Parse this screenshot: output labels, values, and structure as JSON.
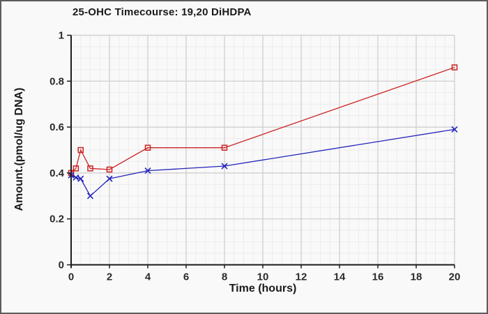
{
  "chart_data": {
    "type": "line",
    "title": "25-OHC Timecourse: 19,20 DiHDPA",
    "xlabel": "Time (hours)",
    "ylabel": "Amount.(pmol/ug DNA)",
    "xlim": [
      0,
      20
    ],
    "ylim": [
      0,
      1
    ],
    "x_major_ticks": [
      0,
      2,
      4,
      6,
      8,
      10,
      12,
      14,
      16,
      18,
      20
    ],
    "x_tick_labels": [
      "0",
      "2",
      "4",
      "6",
      "8",
      "10",
      "12",
      "14",
      "16",
      "18",
      "20"
    ],
    "y_major_ticks": [
      0,
      0.2,
      0.4,
      0.6,
      0.8,
      1
    ],
    "y_tick_labels": [
      "0",
      "0.2",
      "0.4",
      "0.6",
      "0.8",
      "1"
    ],
    "x_minor_step": 0.5,
    "y_minor_step": 0.05,
    "grid": "minor+major",
    "legend_position": "none",
    "x": [
      0,
      0.25,
      0.5,
      1,
      2,
      4,
      8,
      20
    ],
    "series": [
      {
        "label": "red-squares-series",
        "marker": "square",
        "color": "#cc2222",
        "values": [
          0.4,
          0.42,
          0.5,
          0.42,
          0.415,
          0.51,
          0.51,
          0.86
        ]
      },
      {
        "label": "blue-x-series",
        "marker": "x",
        "color": "#2424bb",
        "values": [
          0.39,
          0.38,
          0.375,
          0.3,
          0.375,
          0.41,
          0.43,
          0.59
        ]
      }
    ],
    "colors": {
      "axis": "#1c1c1c",
      "tick_text": "#2a2a2a",
      "grid_minor": "#ececec",
      "grid_major": "#cccccc",
      "background": "#f9f9f9"
    }
  }
}
